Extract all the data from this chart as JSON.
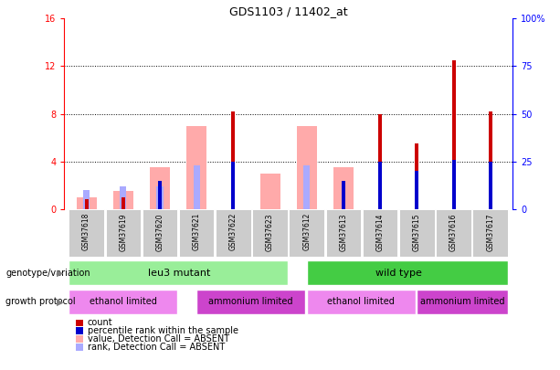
{
  "title": "GDS1103 / 11402_at",
  "samples": [
    "GSM37618",
    "GSM37619",
    "GSM37620",
    "GSM37621",
    "GSM37622",
    "GSM37623",
    "GSM37612",
    "GSM37613",
    "GSM37614",
    "GSM37615",
    "GSM37616",
    "GSM37617"
  ],
  "count_values": [
    0.8,
    1.0,
    0.0,
    0.0,
    8.2,
    0.0,
    0.0,
    0.0,
    8.0,
    5.5,
    12.5,
    8.2
  ],
  "percentile_rank_pct": [
    0,
    0,
    15,
    0,
    25,
    0,
    0,
    15,
    25,
    20,
    26,
    25
  ],
  "absent_value": [
    1.0,
    1.5,
    3.5,
    7.0,
    0.0,
    3.0,
    7.0,
    3.5,
    0.0,
    0.0,
    0.0,
    0.0
  ],
  "absent_rank_pct": [
    10,
    12,
    12,
    23,
    0,
    0,
    23,
    0,
    0,
    0,
    0,
    0
  ],
  "ylim_left": [
    0,
    16
  ],
  "ylim_right": [
    0,
    100
  ],
  "yticks_left": [
    0,
    4,
    8,
    12,
    16
  ],
  "yticks_right": [
    0,
    25,
    50,
    75,
    100
  ],
  "yticklabels_right": [
    "0",
    "25",
    "50",
    "75",
    "100%"
  ],
  "color_count": "#cc0000",
  "color_percentile": "#0000cc",
  "color_absent_value": "#ffaaaa",
  "color_absent_rank": "#aaaaff",
  "color_leu3": "#99ee99",
  "color_wildtype": "#44cc44",
  "color_ethanol": "#ee88ee",
  "color_ammonium": "#cc44cc",
  "color_tickbg": "#cccccc",
  "grid_dotted_yvals": [
    4,
    8,
    12
  ],
  "fig_width": 6.13,
  "fig_height": 4.05,
  "dpi": 100
}
